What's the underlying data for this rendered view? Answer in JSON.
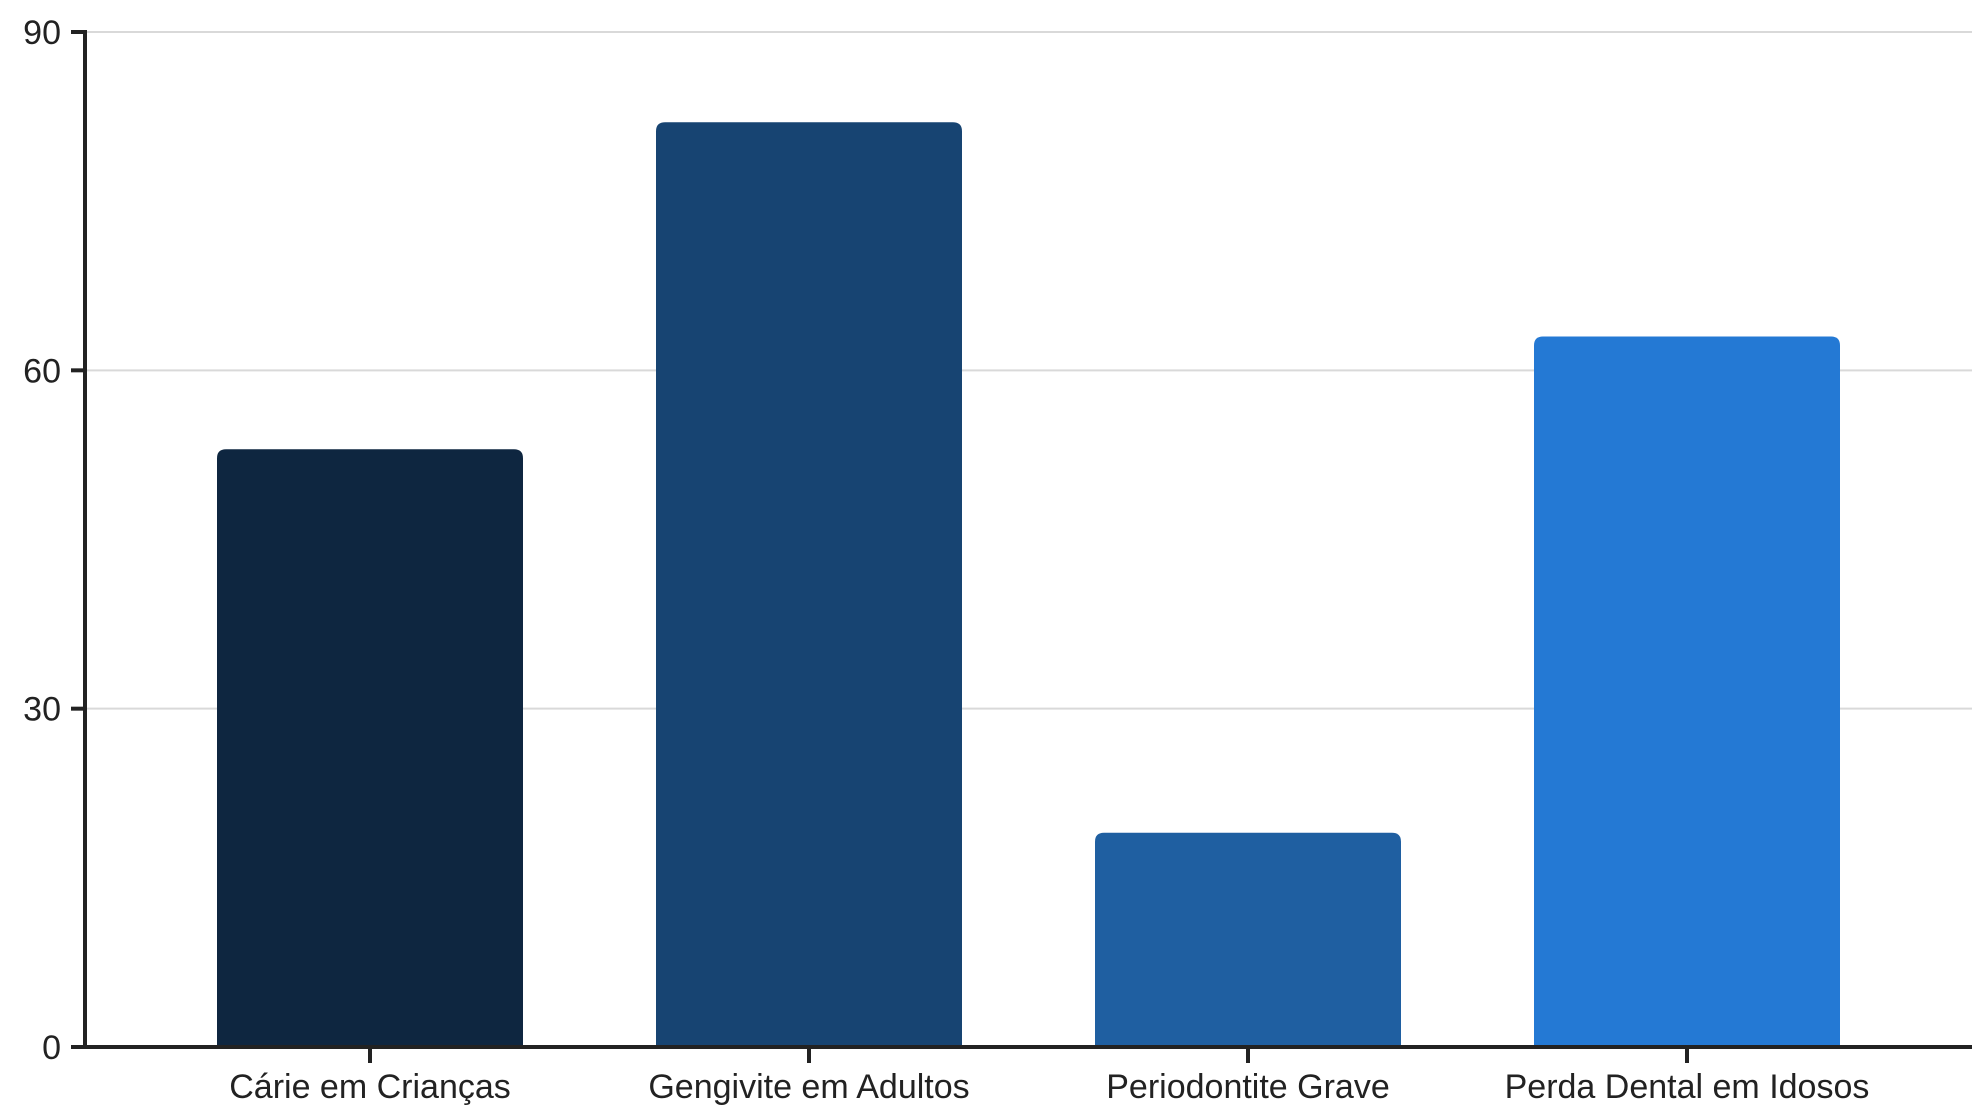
{
  "chart_data": {
    "type": "bar",
    "title": "",
    "xlabel": "",
    "ylabel": "",
    "categories": [
      "Cárie em Crianças",
      "Gengivite em Adultos",
      "Periodontite Grave",
      "Perda Dental em Idosos"
    ],
    "values": [
      53,
      82,
      19,
      63
    ],
    "colors": [
      "#0e2640",
      "#174472",
      "#1f5fa1",
      "#2479d4"
    ],
    "ylim": [
      0,
      90
    ],
    "yticks": [
      0,
      30,
      60,
      90
    ],
    "grid": true,
    "legend": "none"
  }
}
